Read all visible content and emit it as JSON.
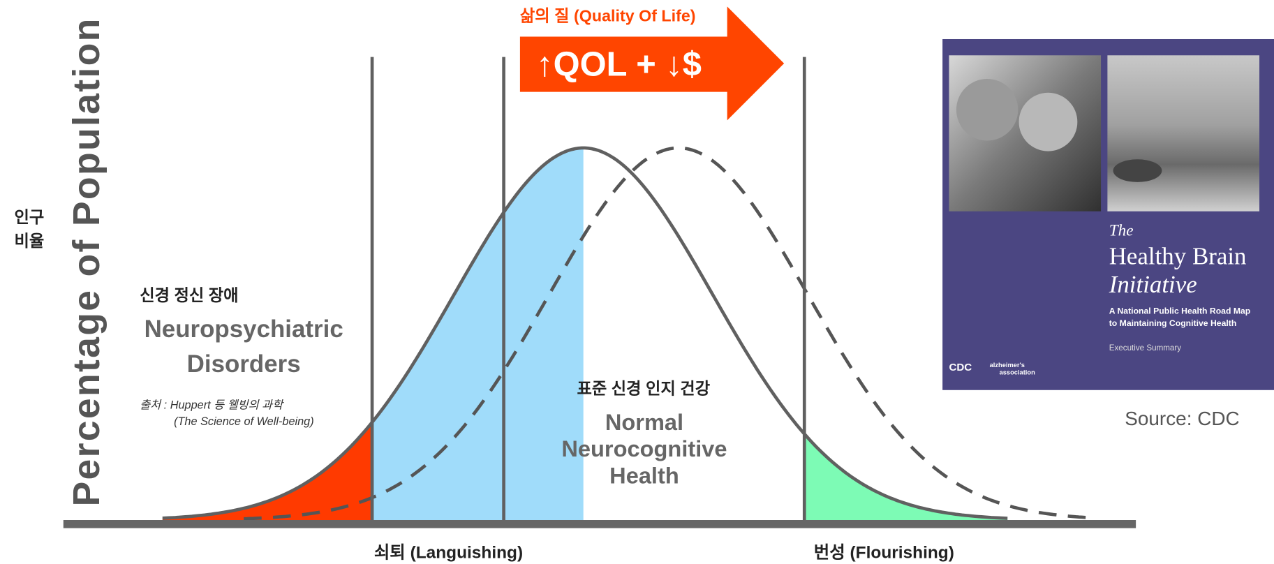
{
  "header": {
    "title": "삶의 질 (Quality Of Life)",
    "arrow_label": "↑QOL + ↓$"
  },
  "axis": {
    "y_label": "Percentage of Population",
    "y_label_ko": [
      "인구",
      "비율"
    ],
    "x_labels": [
      "쇠퇴 (Languishing)",
      "번성 (Flourishing)"
    ]
  },
  "regions": [
    {
      "label_ko": "신경 정신 장애",
      "label_en": [
        "Neuropsychiatric",
        "Disorders"
      ]
    },
    {
      "label_ko": "표준 신경 인지 건강",
      "label_en": [
        "Normal",
        "Neurocognitive",
        "Health"
      ]
    }
  ],
  "citation": [
    "출처 : Huppert 등 웰빙의 과학",
    "(The Science of Well-being)"
  ],
  "cover": {
    "title": [
      "The",
      "Healthy Brain",
      "Initiative"
    ],
    "subtitle": [
      "A National Public Health Road Map",
      "to Maintaining Cognitive Health"
    ],
    "note": "Executive Summary",
    "logos": [
      "CDC",
      "alzheimer's",
      "association"
    ]
  },
  "source": "Source: CDC"
}
